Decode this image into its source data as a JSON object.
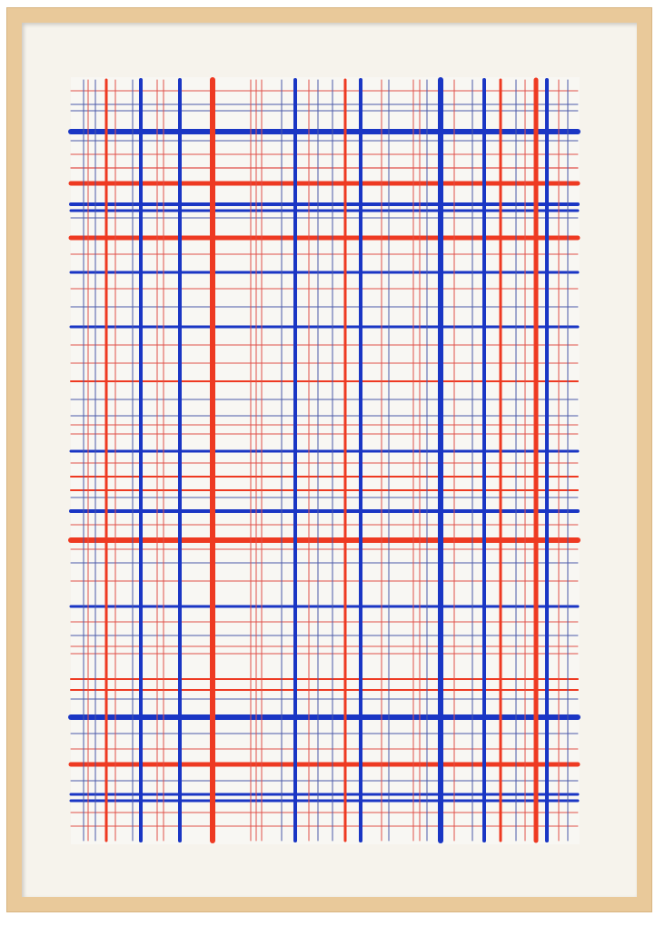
{
  "artwork": {
    "colors": {
      "frame": "#e9c99a",
      "mat": "#f6f3ec",
      "paper": "#f8f7f3",
      "blue": "#1a36c4",
      "red": "#ee3a22",
      "thin_red": "#e0504a",
      "thin_blue": "#4a5aa8"
    }
  }
}
